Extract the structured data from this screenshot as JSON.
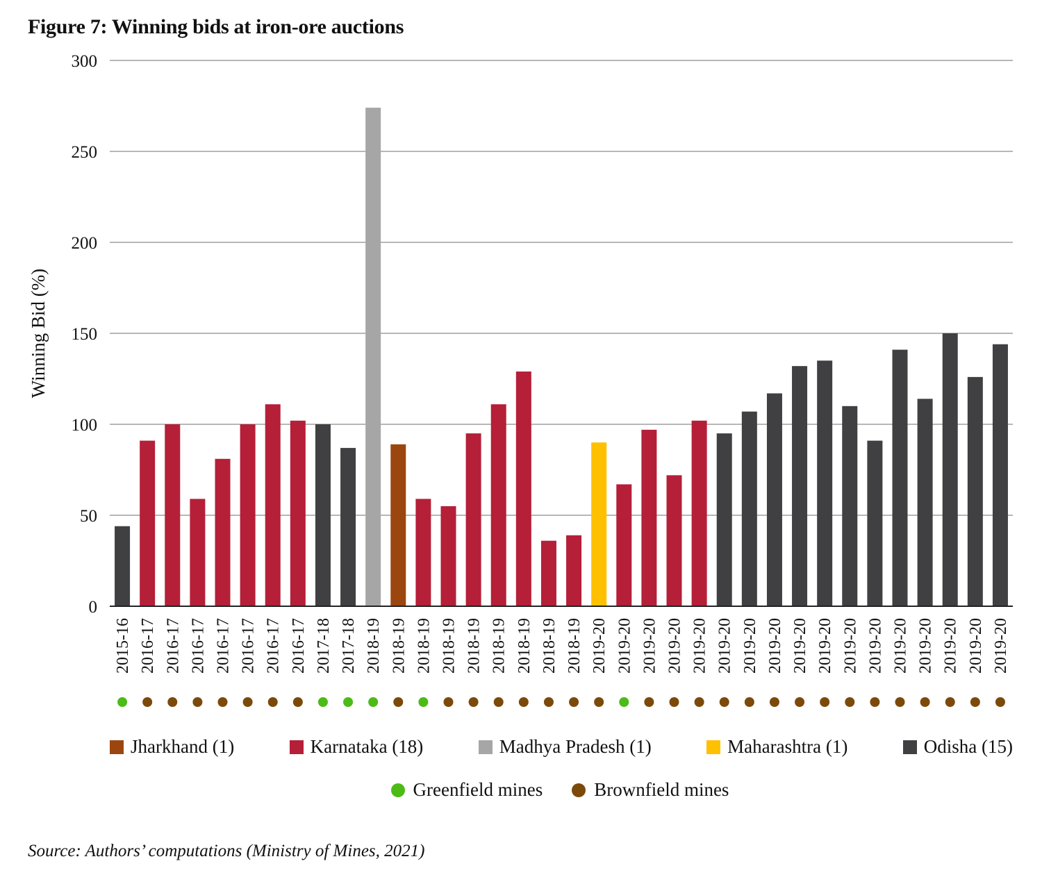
{
  "figure": {
    "title": "Figure 7: Winning bids at iron-ore auctions",
    "source": "Source: Authors’ computations (Ministry of Mines, 2021)"
  },
  "colors": {
    "Jharkhand": "#9c460f",
    "Karnataka": "#b51f38",
    "Madhya Pradesh": "#a6a6a6",
    "Maharashtra": "#ffc000",
    "Odisha": "#404042",
    "Greenfield": "#4cbb17",
    "Brownfield": "#7b4a0b",
    "gridline": "#8c8c8c",
    "axis": "#222222"
  },
  "chart_data": {
    "type": "bar",
    "title": "Figure 7: Winning bids at iron-ore auctions",
    "xlabel": "",
    "ylabel": "Winning Bid (%)",
    "ylim": [
      0,
      300
    ],
    "yticks": [
      0,
      50,
      100,
      150,
      200,
      250,
      300
    ],
    "grid": true,
    "categories": [
      "2015-16",
      "2016-17",
      "2016-17",
      "2016-17",
      "2016-17",
      "2016-17",
      "2016-17",
      "2016-17",
      "2017-18",
      "2017-18",
      "2018-19",
      "2018-19",
      "2018-19",
      "2018-19",
      "2018-19",
      "2018-19",
      "2018-19",
      "2018-19",
      "2018-19",
      "2019-20",
      "2019-20",
      "2019-20",
      "2019-20",
      "2019-20",
      "2019-20",
      "2019-20",
      "2019-20",
      "2019-20",
      "2019-20",
      "2019-20",
      "2019-20",
      "2019-20",
      "2019-20",
      "2019-20",
      "2019-20",
      "2019-20"
    ],
    "values": [
      44,
      91,
      100,
      59,
      81,
      100,
      111,
      102,
      100,
      87,
      274,
      89,
      59,
      55,
      95,
      111,
      129,
      36,
      39,
      90,
      67,
      97,
      72,
      102,
      95,
      107,
      117,
      132,
      135,
      110,
      91,
      141,
      114,
      150,
      126,
      144
    ],
    "state": [
      "Odisha",
      "Karnataka",
      "Karnataka",
      "Karnataka",
      "Karnataka",
      "Karnataka",
      "Karnataka",
      "Karnataka",
      "Odisha",
      "Odisha",
      "Madhya Pradesh",
      "Jharkhand",
      "Karnataka",
      "Karnataka",
      "Karnataka",
      "Karnataka",
      "Karnataka",
      "Karnataka",
      "Karnataka",
      "Maharashtra",
      "Karnataka",
      "Karnataka",
      "Karnataka",
      "Karnataka",
      "Odisha",
      "Odisha",
      "Odisha",
      "Odisha",
      "Odisha",
      "Odisha",
      "Odisha",
      "Odisha",
      "Odisha",
      "Odisha",
      "Odisha",
      "Odisha"
    ],
    "mine_type": [
      "Greenfield",
      "Brownfield",
      "Brownfield",
      "Brownfield",
      "Brownfield",
      "Brownfield",
      "Brownfield",
      "Brownfield",
      "Greenfield",
      "Greenfield",
      "Greenfield",
      "Brownfield",
      "Greenfield",
      "Brownfield",
      "Brownfield",
      "Brownfield",
      "Brownfield",
      "Brownfield",
      "Brownfield",
      "Brownfield",
      "Greenfield",
      "Brownfield",
      "Brownfield",
      "Brownfield",
      "Brownfield",
      "Brownfield",
      "Brownfield",
      "Brownfield",
      "Brownfield",
      "Brownfield",
      "Brownfield",
      "Brownfield",
      "Brownfield",
      "Brownfield",
      "Brownfield",
      "Brownfield"
    ],
    "legend": {
      "states": [
        {
          "name": "Jharkhand",
          "label": "Jharkhand (1)"
        },
        {
          "name": "Karnataka",
          "label": "Karnataka (18)"
        },
        {
          "name": "Madhya Pradesh",
          "label": "Madhya Pradesh (1)"
        },
        {
          "name": "Maharashtra",
          "label": "Maharashtra (1)"
        },
        {
          "name": "Odisha",
          "label": "Odisha (15)"
        }
      ],
      "mines": [
        {
          "name": "Greenfield",
          "label": "Greenfield mines"
        },
        {
          "name": "Brownfield",
          "label": "Brownfield mines"
        }
      ],
      "placement": "bottom"
    }
  }
}
